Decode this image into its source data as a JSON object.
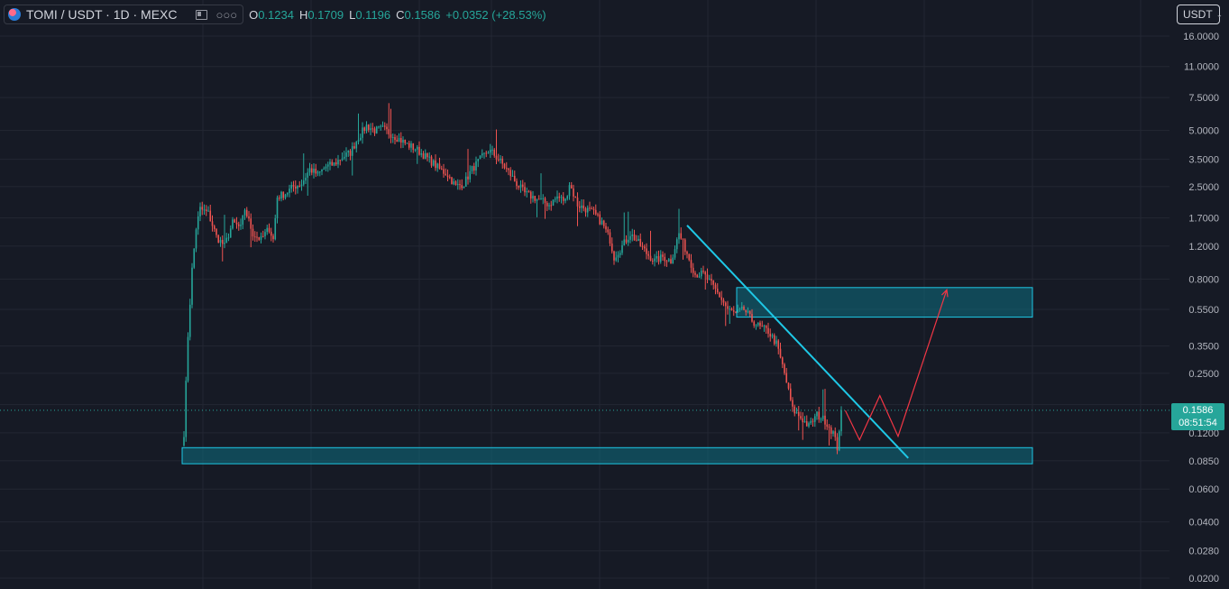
{
  "header": {
    "symbol_title": "TOMI / USDT · 1D · MEXC",
    "dots": "○○○",
    "ohlc": [
      {
        "key": "O",
        "value": "0.1234"
      },
      {
        "key": "H",
        "value": "0.1709"
      },
      {
        "key": "L",
        "value": "0.1196"
      },
      {
        "key": "C",
        "value": "0.1586"
      },
      {
        "key": "",
        "value": "+0.0352 (+28.53%)"
      }
    ],
    "currency": "USDT",
    "icons": [
      "tomi-logo-icon",
      "chevron-down-icon"
    ]
  },
  "colors": {
    "background": "#161a25",
    "up": "#26a69a",
    "down": "#ef5350",
    "zone": "#0e6f82",
    "trendline": "#1ec8e6",
    "projection": "#f23645"
  },
  "last_price": {
    "price": "0.1586",
    "countdown": "08:51:54"
  },
  "chart_data": {
    "type": "candlestick",
    "symbol": "TOMI / USDT",
    "interval": "1D",
    "exchange": "MEXC",
    "y_scale": "log",
    "ylim": [
      0.019,
      20
    ],
    "y_ticks": [
      {
        "value": 16,
        "label": "16.0000"
      },
      {
        "value": 11,
        "label": "11.0000"
      },
      {
        "value": 7.5,
        "label": "7.5000"
      },
      {
        "value": 5,
        "label": "5.0000"
      },
      {
        "value": 3.5,
        "label": "3.5000"
      },
      {
        "value": 2.5,
        "label": "2.5000"
      },
      {
        "value": 1.7,
        "label": "1.7000"
      },
      {
        "value": 1.2,
        "label": "1.2000"
      },
      {
        "value": 0.8,
        "label": "0.8000"
      },
      {
        "value": 0.55,
        "label": "0.5500"
      },
      {
        "value": 0.35,
        "label": "0.3500"
      },
      {
        "value": 0.25,
        "label": "0.2500"
      },
      {
        "value": 0.12,
        "label": "0.1200"
      },
      {
        "value": 0.085,
        "label": "0.0850"
      },
      {
        "value": 0.06,
        "label": "0.0600"
      },
      {
        "value": 0.04,
        "label": "0.0400"
      },
      {
        "value": 0.028,
        "label": "0.0280"
      },
      {
        "value": 0.02,
        "label": "0.0200"
      }
    ],
    "price_path": [
      [
        0,
        0.12
      ],
      [
        2,
        0.4
      ],
      [
        4,
        0.9
      ],
      [
        6,
        1.5
      ],
      [
        8,
        1.9
      ],
      [
        12,
        1.8
      ],
      [
        16,
        1.35
      ],
      [
        20,
        1.2
      ],
      [
        24,
        1.6
      ],
      [
        28,
        1.5
      ],
      [
        30,
        1.9
      ],
      [
        34,
        1.4
      ],
      [
        38,
        1.3
      ],
      [
        42,
        1.5
      ],
      [
        44,
        1.3
      ],
      [
        46,
        2.2
      ],
      [
        50,
        2.3
      ],
      [
        54,
        2.5
      ],
      [
        58,
        2.6
      ],
      [
        62,
        3.1
      ],
      [
        66,
        2.9
      ],
      [
        70,
        3.2
      ],
      [
        74,
        3.3
      ],
      [
        78,
        3.6
      ],
      [
        82,
        3.8
      ],
      [
        86,
        4.6
      ],
      [
        90,
        5.3
      ],
      [
        94,
        5.0
      ],
      [
        98,
        5.1
      ],
      [
        102,
        4.8
      ],
      [
        106,
        4.5
      ],
      [
        110,
        4.2
      ],
      [
        114,
        4.0
      ],
      [
        118,
        3.7
      ],
      [
        122,
        3.4
      ],
      [
        126,
        3.1
      ],
      [
        130,
        2.9
      ],
      [
        134,
        2.5
      ],
      [
        138,
        2.6
      ],
      [
        142,
        3.1
      ],
      [
        146,
        3.5
      ],
      [
        150,
        3.9
      ],
      [
        152,
        3.8
      ],
      [
        156,
        3.4
      ],
      [
        160,
        3.0
      ],
      [
        164,
        2.6
      ],
      [
        168,
        2.3
      ],
      [
        172,
        2.2
      ],
      [
        176,
        2.1
      ],
      [
        180,
        2.0
      ],
      [
        184,
        2.2
      ],
      [
        188,
        2.1
      ],
      [
        190,
        2.6
      ],
      [
        194,
        2.0
      ],
      [
        198,
        1.9
      ],
      [
        202,
        1.8
      ],
      [
        206,
        1.6
      ],
      [
        210,
        1.3
      ],
      [
        212,
        1.05
      ],
      [
        216,
        1.2
      ],
      [
        220,
        1.4
      ],
      [
        224,
        1.25
      ],
      [
        228,
        1.1
      ],
      [
        232,
        1.0
      ],
      [
        236,
        1.05
      ],
      [
        240,
        1.0
      ],
      [
        244,
        1.4
      ],
      [
        248,
        1.1
      ],
      [
        252,
        0.85
      ],
      [
        256,
        0.85
      ],
      [
        260,
        0.75
      ],
      [
        264,
        0.65
      ],
      [
        268,
        0.55
      ],
      [
        272,
        0.52
      ],
      [
        276,
        0.55
      ],
      [
        280,
        0.48
      ],
      [
        284,
        0.44
      ],
      [
        288,
        0.42
      ],
      [
        292,
        0.36
      ],
      [
        296,
        0.25
      ],
      [
        300,
        0.16
      ],
      [
        304,
        0.145
      ],
      [
        308,
        0.13
      ],
      [
        312,
        0.15
      ],
      [
        316,
        0.14
      ],
      [
        320,
        0.12
      ],
      [
        322,
        0.1
      ],
      [
        324,
        0.1586
      ]
    ],
    "annotations": {
      "support_zone": {
        "price_low": 0.082,
        "price_high": 0.1
      },
      "resistance_zone": {
        "price_low": 0.5,
        "price_high": 0.72
      },
      "trendline": {
        "from": [
          248,
          1.55
        ],
        "to": [
          357,
          0.088
        ]
      },
      "projected_path": [
        [
          326,
          0.158
        ],
        [
          333,
          0.11
        ],
        [
          343,
          0.19
        ],
        [
          352,
          0.115
        ],
        [
          376,
          0.7
        ]
      ]
    }
  }
}
